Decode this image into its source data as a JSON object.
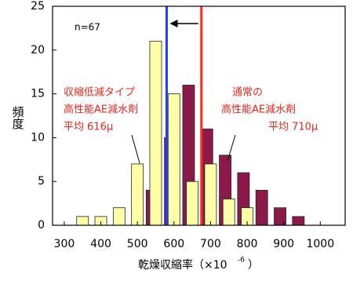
{
  "chart_data": {
    "type": "bar",
    "ylabel": "頻度",
    "xlabel_parts": [
      "乾燥収縮率（×10",
      "-6",
      "）"
    ],
    "note": "n=67",
    "annotations_left": [
      "収縮低減タイプ",
      "高性能AE減水剤",
      "平均 616μ"
    ],
    "annotations_right": [
      "通常の",
      "高性能AE減水剤",
      "平均 710μ"
    ],
    "xlim": [
      268,
      1068
    ],
    "xticks": [
      300,
      400,
      500,
      600,
      700,
      800,
      900,
      1000
    ],
    "ylim": [
      0,
      25
    ],
    "yticks": [
      0,
      5,
      10,
      15,
      20,
      25
    ],
    "series": [
      {
        "color": "#8b1a4a",
        "x": [
          540,
          590,
          640,
          690,
          740,
          790,
          840,
          890,
          940
        ],
        "values": [
          4,
          10,
          16,
          11,
          8,
          6,
          4,
          2,
          1
        ]
      },
      {
        "color": "#ffffa8",
        "x": [
          350,
          400,
          450,
          500,
          550,
          600,
          650,
          700,
          750,
          800
        ],
        "values": [
          1,
          1,
          2,
          7,
          21,
          15,
          5,
          7,
          3,
          2
        ]
      }
    ],
    "vlines": [
      {
        "value": 580,
        "color": "#1f3fff"
      },
      {
        "value": 675,
        "color": "#ff2a1a"
      }
    ]
  }
}
